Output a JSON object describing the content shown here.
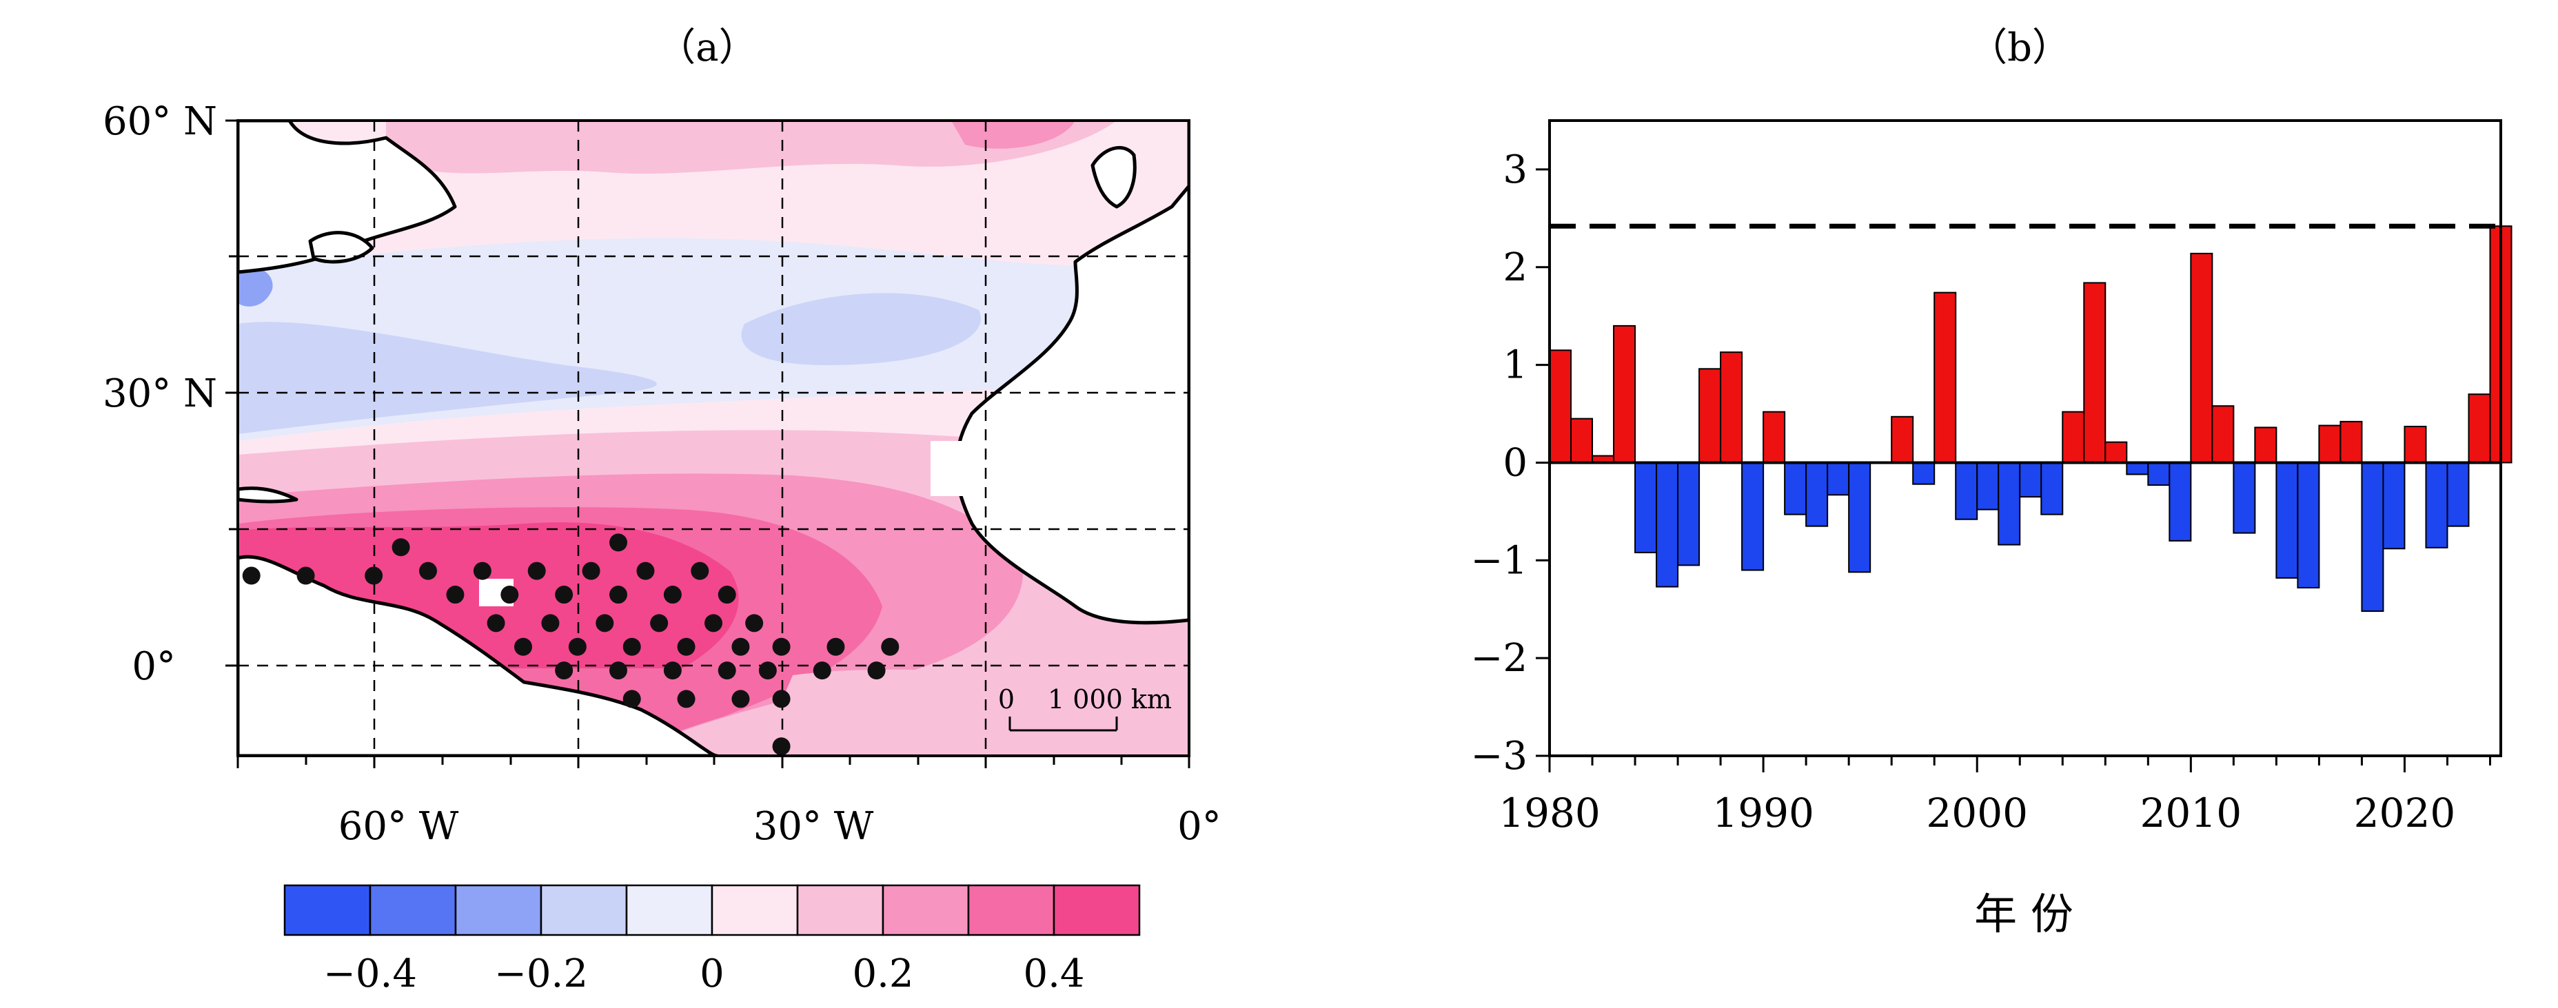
{
  "panel_a": {
    "label": "（a）",
    "lat_ticks": [
      "60° N",
      "30° N",
      "0°"
    ],
    "lon_ticks": [
      "60° W",
      "30° W",
      "0°"
    ],
    "scalebar": {
      "zero": "0",
      "distance": "1 000 km"
    },
    "colorbar": {
      "colors": [
        "#2f56f5",
        "#5675f4",
        "#8ea3f6",
        "#c9d3f8",
        "#eceefb",
        "#fde8f1",
        "#f9c0da",
        "#f794c0",
        "#f56ba6",
        "#f2478d"
      ],
      "tick_labels": [
        "−0.4",
        "−0.2",
        "0",
        "0.2",
        "0.4"
      ]
    }
  },
  "panel_b": {
    "label": "（b）",
    "xlabel": "年 份",
    "xticks": [
      "1980",
      "1990",
      "2000",
      "2010",
      "2020"
    ],
    "yticks": [
      "3",
      "2",
      "1",
      "0",
      "−1",
      "−2",
      "−3"
    ]
  },
  "colors": {
    "positive": "#ee1111",
    "negative": "#1d45f0"
  },
  "chart_data": [
    {
      "type": "heatmap",
      "title": "（a）",
      "description_units": "lat/lon map, North Atlantic",
      "xlim_lon": [
        -70,
        0
      ],
      "ylim_lat": [
        -7,
        60
      ],
      "xtick_labels": [
        "60° W",
        "30° W",
        "0°"
      ],
      "ytick_labels": [
        "60° N",
        "30° N",
        "0°"
      ],
      "colorbar_ticks": [
        -0.4,
        -0.2,
        0,
        0.2,
        0.4
      ],
      "colorbar_range": [
        -0.5,
        0.5
      ],
      "stipple_points": [
        [
          -69,
          12
        ],
        [
          -65,
          12
        ],
        [
          -60,
          12
        ],
        [
          -58,
          15
        ],
        [
          -56,
          12.5
        ],
        [
          -54,
          10
        ],
        [
          -52,
          12.5
        ],
        [
          -50,
          10
        ],
        [
          -48,
          12.5
        ],
        [
          -46,
          10
        ],
        [
          -44,
          12.5
        ],
        [
          -42,
          10
        ],
        [
          -40,
          12.5
        ],
        [
          -38,
          10
        ],
        [
          -36,
          12.5
        ],
        [
          -34,
          10
        ],
        [
          -51,
          7
        ],
        [
          -47,
          7
        ],
        [
          -43,
          7
        ],
        [
          -39,
          7
        ],
        [
          -35,
          7
        ],
        [
          -32,
          7
        ],
        [
          -49,
          4.5
        ],
        [
          -45,
          4.5
        ],
        [
          -41,
          4.5
        ],
        [
          -37,
          4.5
        ],
        [
          -33,
          4.5
        ],
        [
          -30,
          4.5
        ],
        [
          -26,
          4.5
        ],
        [
          -22,
          4.5
        ],
        [
          -46,
          2
        ],
        [
          -42,
          2
        ],
        [
          -38,
          2
        ],
        [
          -34,
          2
        ],
        [
          -31,
          2
        ],
        [
          -27,
          2
        ],
        [
          -23,
          2
        ],
        [
          -41,
          -1
        ],
        [
          -37,
          -1
        ],
        [
          -33,
          -1
        ],
        [
          -30,
          -1
        ],
        [
          -30,
          -6
        ],
        [
          -42,
          15.5
        ]
      ]
    },
    {
      "type": "bar",
      "title": "（b）",
      "xlabel": "年 份",
      "ylabel": "",
      "ylim": [
        -3,
        3.5
      ],
      "xlim": [
        1980,
        2024.5
      ],
      "threshold_line": 2.42,
      "x": [
        1980,
        1981,
        1982,
        1983,
        1984,
        1985,
        1986,
        1987,
        1988,
        1989,
        1990,
        1991,
        1992,
        1993,
        1994,
        1995,
        1996,
        1997,
        1998,
        1999,
        2000,
        2001,
        2002,
        2003,
        2004,
        2005,
        2006,
        2007,
        2008,
        2009,
        2010,
        2011,
        2012,
        2013,
        2014,
        2015,
        2016,
        2017,
        2018,
        2019,
        2020,
        2021,
        2022,
        2023,
        2024
      ],
      "values": [
        1.15,
        0.45,
        0.07,
        1.4,
        -0.92,
        -1.27,
        -1.05,
        0.96,
        1.13,
        -1.1,
        0.52,
        -0.53,
        -0.65,
        -0.33,
        -1.12,
        0.0,
        0.47,
        -0.22,
        1.74,
        -0.58,
        -0.48,
        -0.84,
        -0.35,
        -0.53,
        0.52,
        1.84,
        0.21,
        -0.12,
        -0.23,
        -0.8,
        2.14,
        0.58,
        -0.72,
        0.36,
        -1.18,
        -1.28,
        0.38,
        0.42,
        -1.52,
        -0.88,
        0.37,
        -0.87,
        -0.65,
        0.7,
        2.42
      ]
    }
  ]
}
